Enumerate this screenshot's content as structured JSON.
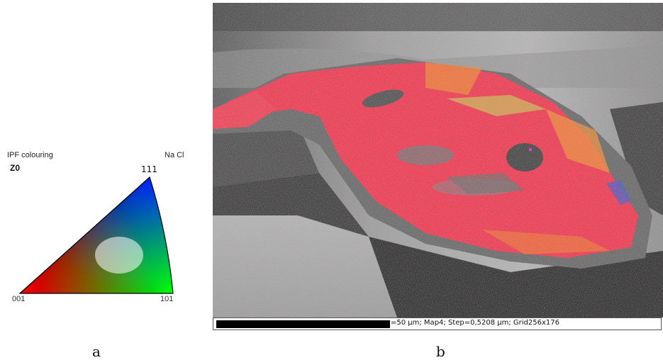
{
  "panel_a": {
    "title": "IPF colouring",
    "axis_label": "Z0",
    "phase": "Na Cl",
    "corners": {
      "top": "111",
      "bottom_left": "001",
      "bottom_right": "101"
    },
    "corner_colors": {
      "001": "#ff0000",
      "101": "#00ff00",
      "111": "#0000ff"
    },
    "caption": "a"
  },
  "panel_b": {
    "scale_text": "=50 µm; Map4; Step=0,5208 µm; Grid256x176",
    "caption": "b",
    "grain_color_dominant": "#ff1e3c",
    "grain_color_secondary": "#ff7a1a"
  }
}
